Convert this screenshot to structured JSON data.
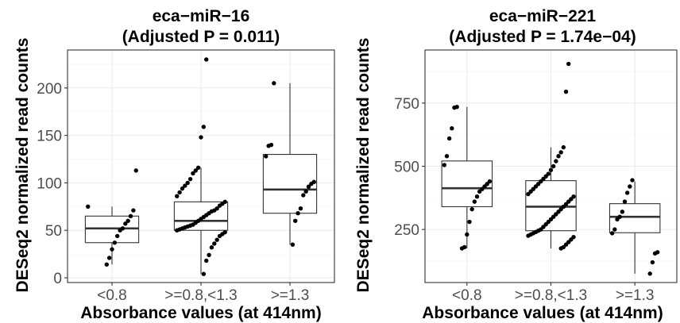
{
  "chart_data": [
    {
      "type": "box",
      "title": "eca−miR−16",
      "subtitle": "(Adjusted P = 0.011)",
      "xlabel": "Absorbance values (at 414nm)",
      "ylabel": "DESeq2 normalized read counts",
      "categories": [
        "<0.8",
        ">=0.8,<1.3",
        ">=1.3"
      ],
      "yticks": [
        "0",
        "50",
        "100",
        "150",
        "200"
      ],
      "ytick_values": [
        0,
        50,
        100,
        150,
        200
      ],
      "ylim": [
        -5,
        240
      ],
      "grid": true,
      "boxes": [
        {
          "whisker_low": 14,
          "q1": 37,
          "median": 52,
          "q3": 65,
          "whisker_high": 75
        },
        {
          "whisker_low": 4,
          "q1": 50,
          "median": 60,
          "q3": 80,
          "whisker_high": 116
        },
        {
          "whisker_low": 35,
          "q1": 68,
          "median": 93,
          "q3": 130,
          "whisker_high": 205
        }
      ],
      "points": [
        [
          75,
          113,
          71,
          65,
          60,
          57,
          52,
          50,
          44,
          37,
          30,
          21,
          14
        ],
        [
          230,
          159,
          148,
          116,
          113,
          110,
          104,
          100,
          97,
          94,
          90,
          86,
          80,
          78,
          76,
          73,
          71,
          70,
          68,
          66,
          64,
          62,
          60,
          58,
          56,
          55,
          54,
          53,
          52,
          51,
          50,
          48,
          46,
          44,
          40,
          36,
          32,
          24,
          18,
          4
        ],
        [
          205,
          140,
          139,
          128,
          101,
          99,
          96,
          91,
          87,
          73,
          68,
          60,
          35
        ]
      ]
    },
    {
      "type": "box",
      "title": "eca−miR−221",
      "subtitle": "(Adjusted P = 1.74e−04)",
      "xlabel": "Absorbance values (at 414nm)",
      "ylabel": "DESeq2 normalized read counts",
      "categories": [
        "<0.8",
        ">=0.8,<1.3",
        ">=1.3"
      ],
      "yticks": [
        "250",
        "500",
        "750"
      ],
      "ytick_values": [
        250,
        500,
        750
      ],
      "ylim": [
        40,
        960
      ],
      "grid": true,
      "boxes": [
        {
          "whisker_low": 175,
          "q1": 340,
          "median": 413,
          "q3": 521,
          "whisker_high": 735
        },
        {
          "whisker_low": 175,
          "q1": 245,
          "median": 340,
          "q3": 443,
          "whisker_high": 575
        },
        {
          "whisker_low": 75,
          "q1": 237,
          "median": 300,
          "q3": 352,
          "whisker_high": 440
        }
      ],
      "points": [
        [
          735,
          732,
          650,
          610,
          540,
          505,
          440,
          430,
          420,
          410,
          400,
          380,
          360,
          330,
          280,
          230,
          180,
          175
        ],
        [
          905,
          795,
          575,
          555,
          540,
          520,
          500,
          485,
          470,
          460,
          450,
          440,
          430,
          420,
          410,
          400,
          390,
          380,
          370,
          360,
          350,
          340,
          330,
          320,
          310,
          300,
          290,
          280,
          270,
          260,
          250,
          245,
          240,
          235,
          230,
          225,
          220,
          210,
          200,
          190,
          180,
          175
        ],
        [
          445,
          420,
          395,
          360,
          320,
          300,
          290,
          250,
          235,
          160,
          155,
          120,
          75
        ]
      ]
    }
  ]
}
